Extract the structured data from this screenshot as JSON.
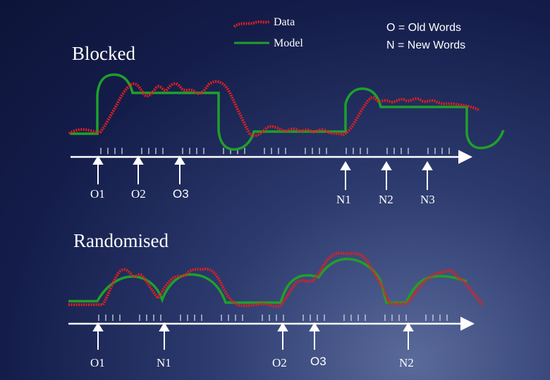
{
  "legend": {
    "data_label": "Data",
    "model_label": "Model",
    "data_color": "#e02020",
    "model_color": "#1fa02a"
  },
  "key": {
    "old": "O = Old  Words",
    "new": "N = New Words"
  },
  "sections": {
    "blocked": {
      "title": "Blocked",
      "markers": [
        "O1",
        "O2",
        "O3",
        "N1",
        "N2",
        "N3"
      ]
    },
    "randomised": {
      "title": "Randomised",
      "markers": [
        "O1",
        "N1",
        "O2",
        "O3",
        "N2"
      ]
    }
  }
}
